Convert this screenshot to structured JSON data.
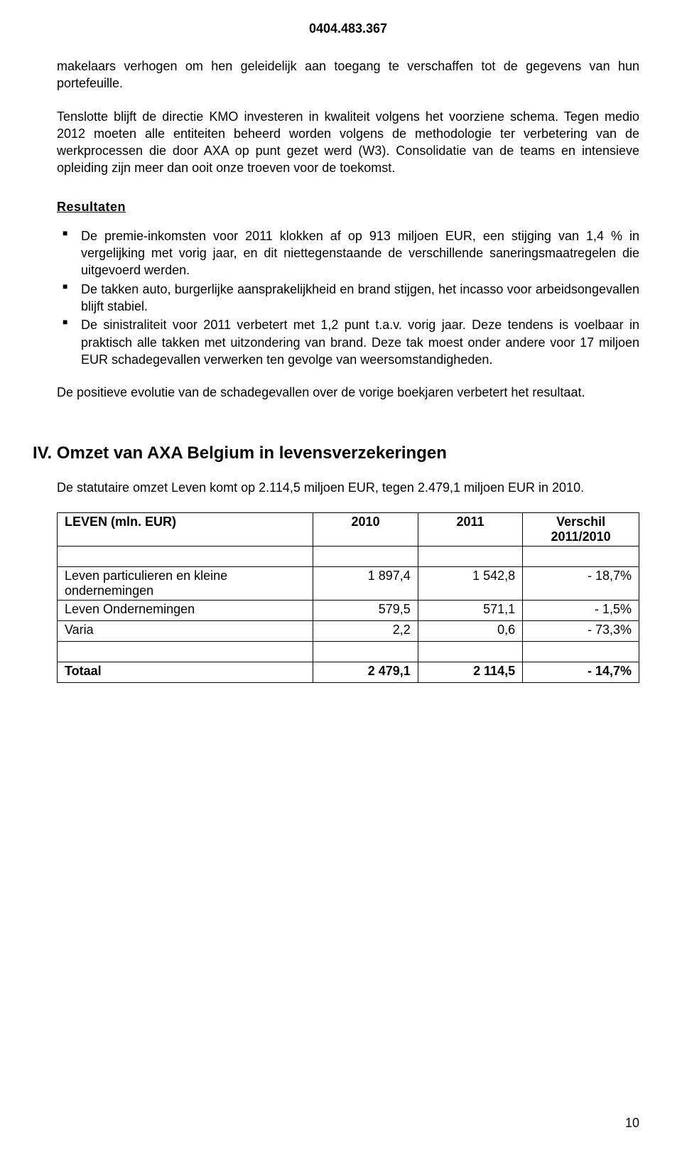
{
  "header": {
    "code": "0404.483.367"
  },
  "para1": "makelaars verhogen om hen geleidelijk aan toegang te verschaffen tot de gegevens van hun portefeuille.",
  "para2": "Tenslotte blijft de directie KMO investeren in kwaliteit volgens het voorziene schema. Tegen medio 2012 moeten alle entiteiten beheerd worden volgens de methodologie ter verbetering van de werkprocessen die door AXA op punt gezet werd (W3). Consolidatie van de teams en intensieve opleiding zijn meer dan ooit onze troeven voor de toekomst.",
  "results_heading": "Resultaten",
  "results": [
    "De premie-inkomsten voor 2011 klokken af op 913 miljoen EUR, een stijging van 1,4 % in vergelijking met vorig jaar, en dit niettegenstaande de verschillende saneringsmaatregelen die uitgevoerd werden.",
    "De takken auto, burgerlijke aansprakelijkheid en brand stijgen, het incasso voor arbeidsongevallen blijft stabiel.",
    "De sinistraliteit voor 2011 verbetert met 1,2 punt t.a.v. vorig jaar. Deze tendens is voelbaar in praktisch alle takken met uitzondering van brand. Deze tak moest onder andere voor 17 miljoen EUR schadegevallen verwerken ten gevolge van weersomstandigheden."
  ],
  "para3": "De positieve evolutie van de schadegevallen over de vorige boekjaren verbetert het resultaat.",
  "section": {
    "title": "IV.  Omzet van AXA Belgium in levensverzekeringen",
    "intro": "De statutaire omzet Leven komt op 2.114,5 miljoen EUR, tegen 2.479,1 miljoen EUR in 2010."
  },
  "table": {
    "type": "table",
    "columns": [
      "LEVEN (mln. EUR)",
      "2010",
      "2011",
      "Verschil 2011/2010"
    ],
    "rows": [
      {
        "label": "Leven particulieren en kleine ondernemingen",
        "v2010": "1 897,4",
        "v2011": "1 542,8",
        "diff": "- 18,7%"
      },
      {
        "label": "Leven Ondernemingen",
        "v2010": "579,5",
        "v2011": "571,1",
        "diff": "- 1,5%"
      },
      {
        "label": "Varia",
        "v2010": "2,2",
        "v2011": "0,6",
        "diff": "- 73,3%"
      }
    ],
    "total": {
      "label": "Totaal",
      "v2010": "2 479,1",
      "v2011": "2 114,5",
      "diff": "- 14,7%"
    },
    "col_widths": [
      "44%",
      "18%",
      "18%",
      "20%"
    ]
  },
  "page_number": "10",
  "colors": {
    "text": "#000000",
    "background": "#ffffff",
    "border": "#000000"
  }
}
